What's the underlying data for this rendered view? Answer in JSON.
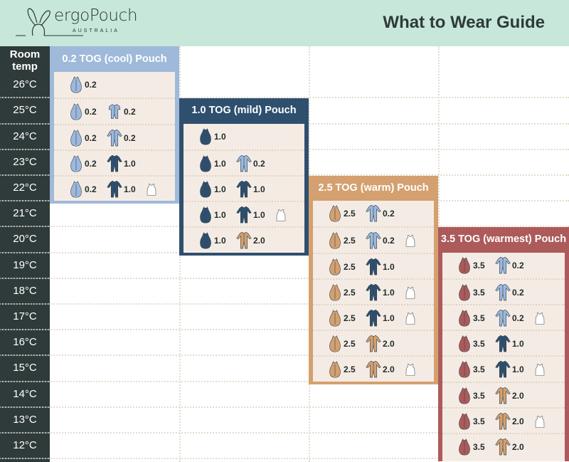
{
  "header": {
    "brand": "ergoPouch",
    "brand_sub": "AUSTRALIA",
    "title": "What to Wear Guide"
  },
  "column_header": "Room temp",
  "temps": [
    "26°C",
    "25°C",
    "24°C",
    "23°C",
    "22°C",
    "21°C",
    "20°C",
    "19°C",
    "18°C",
    "17°C",
    "16°C",
    "15°C",
    "14°C",
    "13°C",
    "12°C"
  ],
  "colors": {
    "header_bg": "#c6e7d9",
    "sidebar": "#2f3a3a",
    "cream": "#f4ece4",
    "light_blue": "#9db8dc",
    "navy": "#2f4f6e",
    "tan": "#d4a06f",
    "red": "#ad5a5a",
    "white": "#ffffff"
  },
  "panels": [
    {
      "title": "0.2 TOG (cool) Pouch",
      "color": "#9fb9da",
      "pouch_color": "#9db8dc",
      "pouch_tog": "0.2",
      "start_temp": "26°C",
      "rows": [
        [],
        [
          {
            "type": "short-suit",
            "color": "light_blue",
            "tog": "0.2"
          }
        ],
        [
          {
            "type": "suit",
            "color": "light_blue",
            "tog": "0.2"
          }
        ],
        [
          {
            "type": "suit",
            "color": "navy",
            "tog": "1.0"
          }
        ],
        [
          {
            "type": "suit",
            "color": "navy",
            "tog": "1.0"
          },
          {
            "type": "vest"
          }
        ]
      ]
    },
    {
      "title": "1.0 TOG (mild) Pouch",
      "color": "#2f4f6e",
      "pouch_color": "#2f4f6e",
      "pouch_tog": "1.0",
      "start_temp": "24°C",
      "rows": [
        [],
        [
          {
            "type": "suit",
            "color": "light_blue",
            "tog": "0.2"
          }
        ],
        [
          {
            "type": "suit",
            "color": "navy",
            "tog": "1.0"
          }
        ],
        [
          {
            "type": "suit",
            "color": "navy",
            "tog": "1.0"
          },
          {
            "type": "vest"
          }
        ],
        [
          {
            "type": "suit",
            "color": "tan",
            "tog": "2.0"
          }
        ]
      ]
    },
    {
      "title": "2.5 TOG (warm) Pouch",
      "color": "#d4a06f",
      "pouch_color": "#d4a06f",
      "pouch_tog": "2.5",
      "start_temp": "21°C",
      "rows": [
        [
          {
            "type": "suit",
            "color": "light_blue",
            "tog": "0.2"
          }
        ],
        [
          {
            "type": "suit",
            "color": "light_blue",
            "tog": "0.2"
          },
          {
            "type": "vest"
          }
        ],
        [
          {
            "type": "suit",
            "color": "navy",
            "tog": "1.0"
          }
        ],
        [
          {
            "type": "suit",
            "color": "navy",
            "tog": "1.0"
          },
          {
            "type": "vest"
          }
        ],
        [
          {
            "type": "suit",
            "color": "navy",
            "tog": "1.0"
          },
          {
            "type": "vest"
          }
        ],
        [
          {
            "type": "suit",
            "color": "tan",
            "tog": "2.0"
          }
        ],
        [
          {
            "type": "suit",
            "color": "tan",
            "tog": "2.0"
          },
          {
            "type": "vest"
          }
        ]
      ]
    },
    {
      "title": "3.5 TOG (warmest) Pouch",
      "color": "#ad5a5a",
      "pouch_color": "#ad5a5a",
      "pouch_tog": "3.5",
      "start_temp": "19°C",
      "rows": [
        [
          {
            "type": "suit",
            "color": "light_blue",
            "tog": "0.2"
          }
        ],
        [
          {
            "type": "suit",
            "color": "light_blue",
            "tog": "0.2"
          }
        ],
        [
          {
            "type": "suit",
            "color": "light_blue",
            "tog": "0.2"
          },
          {
            "type": "vest"
          }
        ],
        [
          {
            "type": "suit",
            "color": "navy",
            "tog": "1.0"
          }
        ],
        [
          {
            "type": "suit",
            "color": "navy",
            "tog": "1.0"
          },
          {
            "type": "vest"
          }
        ],
        [
          {
            "type": "suit",
            "color": "tan",
            "tog": "2.0"
          }
        ],
        [
          {
            "type": "suit",
            "color": "tan",
            "tog": "2.0"
          },
          {
            "type": "vest"
          }
        ],
        [
          {
            "type": "suit",
            "color": "tan",
            "tog": "2.0"
          }
        ]
      ]
    }
  ]
}
